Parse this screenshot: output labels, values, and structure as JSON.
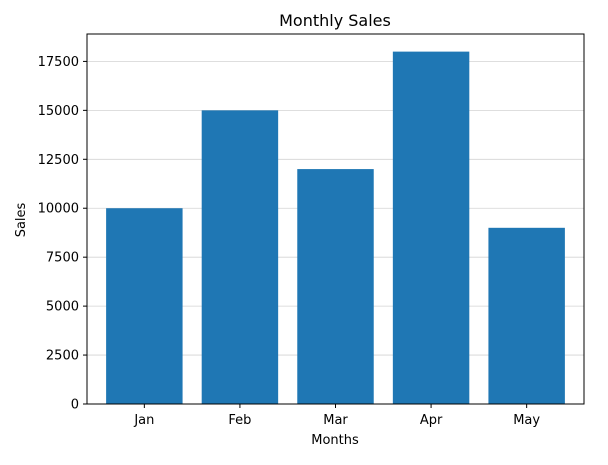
{
  "chart_data": {
    "type": "bar",
    "title": "Monthly Sales",
    "xlabel": "Months",
    "ylabel": "Sales",
    "categories": [
      "Jan",
      "Feb",
      "Mar",
      "Apr",
      "May"
    ],
    "values": [
      10000,
      15000,
      12000,
      18000,
      9000
    ],
    "ylim": [
      0,
      18900
    ],
    "yticks": [
      0,
      2500,
      5000,
      7500,
      10000,
      12500,
      15000,
      17500
    ],
    "grid": "horizontal",
    "bar_color": "#1f77b4",
    "grid_color": "#d3d3d3"
  }
}
